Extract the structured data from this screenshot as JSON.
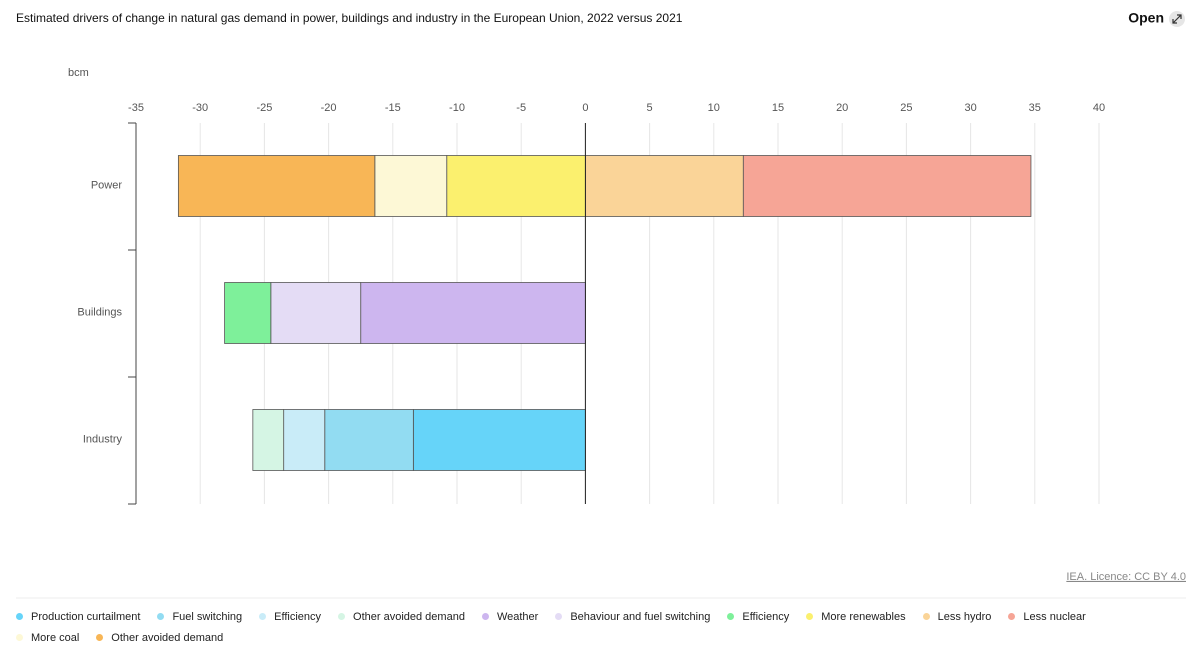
{
  "chart_data": {
    "type": "bar",
    "orientation": "horizontal",
    "stacked": true,
    "title": "Estimated drivers of change in natural gas demand in power, buildings and industry in the European Union, 2022 versus 2021",
    "unit_label": "bcm",
    "categories": [
      "Power",
      "Buildings",
      "Industry"
    ],
    "xlim": [
      -35,
      40
    ],
    "xticks": [
      -35,
      -30,
      -25,
      -20,
      -15,
      -10,
      -5,
      0,
      5,
      10,
      15,
      20,
      25,
      30,
      35,
      40
    ],
    "grid": true,
    "series": [
      {
        "name": "Production curtailment",
        "color": "#66d4f9",
        "values": [
          null,
          null,
          -13.4
        ]
      },
      {
        "name": "Fuel switching",
        "color": "#92dcf2",
        "values": [
          null,
          null,
          -6.9
        ]
      },
      {
        "name": "Efficiency",
        "color": "#c9ecf8",
        "values": [
          null,
          null,
          -3.2
        ]
      },
      {
        "name": "Other avoided demand",
        "color": "#d5f5e4",
        "values": [
          null,
          null,
          -2.4
        ]
      },
      {
        "name": "Weather",
        "color": "#cdb6ef",
        "values": [
          null,
          -17.5,
          null
        ]
      },
      {
        "name": "Behaviour and fuel switching",
        "color": "#e4dcf5",
        "values": [
          null,
          -7.0,
          null
        ]
      },
      {
        "name": "Efficiency",
        "color": "#7ef09a",
        "values": [
          null,
          -3.6,
          null
        ]
      },
      {
        "name": "More renewables",
        "color": "#fbf06e",
        "values": [
          -10.8,
          null,
          null
        ]
      },
      {
        "name": "Less hydro",
        "color": "#fad498",
        "values": [
          12.3,
          null,
          null
        ]
      },
      {
        "name": "Less nuclear",
        "color": "#f6a596",
        "values": [
          22.4,
          null,
          null
        ]
      },
      {
        "name": "More coal",
        "color": "#fdf8d6",
        "values": [
          -5.6,
          null,
          null
        ]
      },
      {
        "name": "Other avoided demand",
        "color": "#f8b656",
        "values": [
          -15.3,
          null,
          null
        ]
      }
    ]
  },
  "ui": {
    "open_button": "Open",
    "source": "IEA. Licence: CC BY 4.0"
  }
}
